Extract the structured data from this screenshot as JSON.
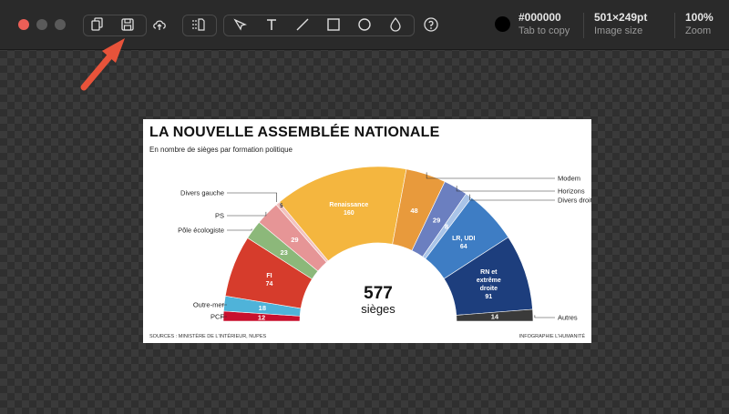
{
  "toolbar": {
    "color_value": "#000000",
    "color_hint": "Tab to copy",
    "image_size": "501×249pt",
    "image_size_label": "Image size",
    "zoom": "100%",
    "zoom_label": "Zoom"
  },
  "colors": {
    "arrow": "#e8533a",
    "swatch": "#000000"
  },
  "infographic": {
    "title": "LA NOUVELLE ASSEMBLÉE NATIONALE",
    "subtitle": "En nombre de sièges par formation politique",
    "total": "577",
    "total_label": "sièges",
    "source": "SOURCES : MINISTÈRE DE L'INTÉRIEUR, NUPES",
    "credit": "INFOGRAPHIE L'HUMANITÉ"
  },
  "chart_data": {
    "type": "pie",
    "categories": [
      "PCF",
      "Outre-mer",
      "FI",
      "Pôle écologiste",
      "PS",
      "Divers gauche",
      "Renaissance",
      "Modem",
      "Horizons",
      "Divers droite",
      "LR, UDI",
      "RN et extrême droite",
      "Autres"
    ],
    "values": [
      12,
      18,
      74,
      23,
      29,
      5,
      160,
      48,
      29,
      8,
      64,
      91,
      14
    ],
    "colors": [
      "#c8102e",
      "#4fb3d9",
      "#d63c2c",
      "#8cb87a",
      "#e69596",
      "#f2c2c0",
      "#f4b63f",
      "#e89a3c",
      "#6b7fc0",
      "#a9c4e8",
      "#3e7dc4",
      "#1d3e7d",
      "#3a3a3a"
    ],
    "labels_inside": [
      "12",
      "18",
      "FI\n74",
      "23",
      "29",
      "",
      "Renaissance\n160",
      "48",
      "29",
      "8",
      "LR, UDI\n64",
      "RN et\nextrême\ndroite\n91",
      "14"
    ],
    "outside_labels": [
      {
        "text": "PCF",
        "side": "left"
      },
      {
        "text": "Outre-mer",
        "side": "left"
      },
      {
        "text": "Pôle écologiste",
        "side": "left"
      },
      {
        "text": "PS",
        "side": "left"
      },
      {
        "text": "Divers gauche",
        "side": "left"
      },
      {
        "text": "Modem",
        "side": "right"
      },
      {
        "text": "Horizons",
        "side": "right"
      },
      {
        "text": "Divers droite",
        "side": "right"
      },
      {
        "text": "Autres",
        "side": "right"
      }
    ]
  }
}
